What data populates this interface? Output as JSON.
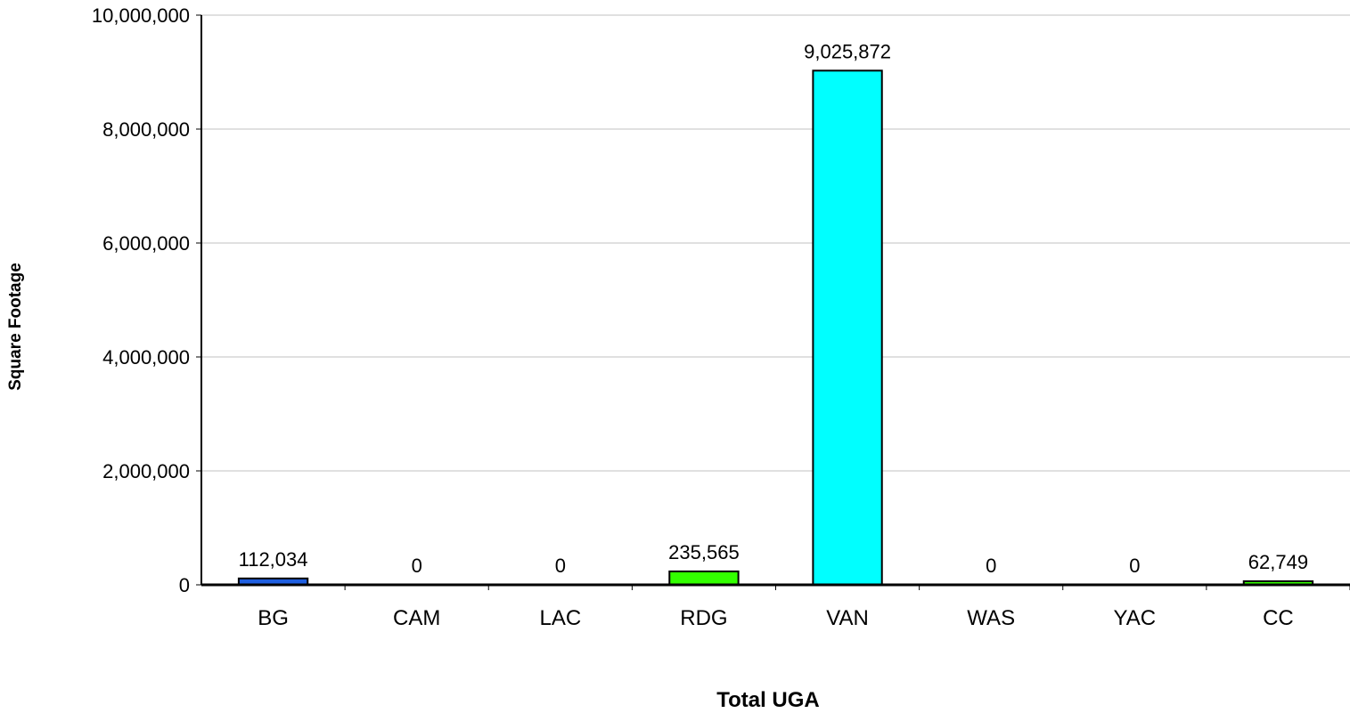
{
  "chart_data": {
    "type": "bar",
    "title": "",
    "xlabel": "Total UGA",
    "ylabel": "Square Footage",
    "categories": [
      "BG",
      "CAM",
      "LAC",
      "RDG",
      "VAN",
      "WAS",
      "YAC",
      "CC"
    ],
    "values": [
      112034,
      0,
      0,
      235565,
      9025872,
      0,
      0,
      62749
    ],
    "data_labels": [
      "112,034",
      "0",
      "0",
      "235,565",
      "9,025,872",
      "0",
      "0",
      "62,749"
    ],
    "bar_colors": [
      "#1f5fe0",
      "#33ff00",
      "#00ffff",
      "#33ff00",
      "#00ffff",
      "#1f5fe0",
      "#33ff00",
      "#33ff00"
    ],
    "ylim": [
      0,
      10000000
    ],
    "yticks": [
      0,
      2000000,
      4000000,
      6000000,
      8000000,
      10000000
    ],
    "ytick_labels": [
      "0",
      "2,000,000",
      "4,000,000",
      "6,000,000",
      "8,000,000",
      "10,000,000"
    ],
    "grid": true,
    "legend": "none"
  }
}
